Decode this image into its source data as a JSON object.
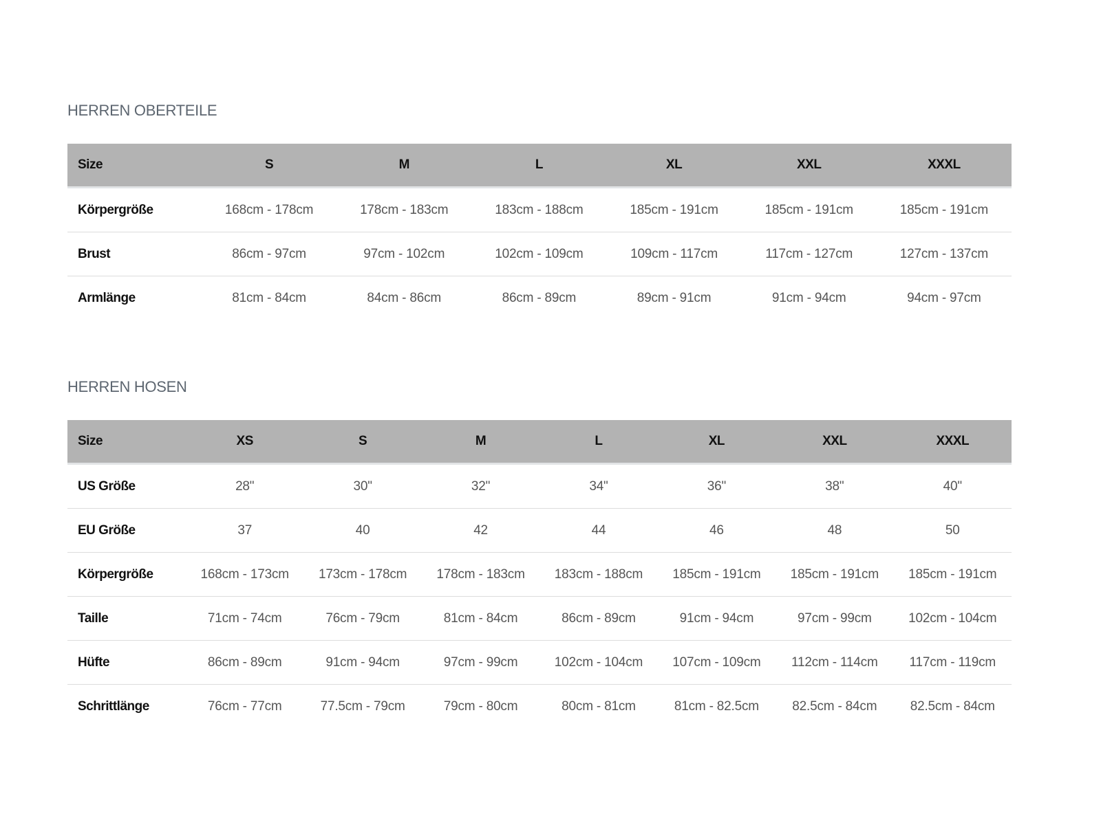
{
  "tops": {
    "title": "HERREN OBERTEILE",
    "headers": [
      "Size",
      "S",
      "M",
      "L",
      "XL",
      "XXL",
      "XXXL"
    ],
    "rows": [
      {
        "label": "Körpergröße",
        "values": [
          "168cm - 178cm",
          "178cm - 183cm",
          "183cm - 188cm",
          "185cm - 191cm",
          "185cm - 191cm",
          "185cm - 191cm"
        ]
      },
      {
        "label": "Brust",
        "values": [
          "86cm - 97cm",
          "97cm - 102cm",
          "102cm - 109cm",
          "109cm - 117cm",
          "117cm - 127cm",
          "127cm - 137cm"
        ]
      },
      {
        "label": "Armlänge",
        "values": [
          "81cm - 84cm",
          "84cm - 86cm",
          "86cm - 89cm",
          "89cm - 91cm",
          "91cm - 94cm",
          "94cm - 97cm"
        ]
      }
    ]
  },
  "pants": {
    "title": "HERREN HOSEN",
    "headers": [
      "Size",
      "XS",
      "S",
      "M",
      "L",
      "XL",
      "XXL",
      "XXXL"
    ],
    "rows": [
      {
        "label": "US Größe",
        "values": [
          "28\"",
          "30\"",
          "32\"",
          "34\"",
          "36\"",
          "38\"",
          "40\""
        ]
      },
      {
        "label": "EU Größe",
        "values": [
          "37",
          "40",
          "42",
          "44",
          "46",
          "48",
          "50"
        ]
      },
      {
        "label": "Körpergröße",
        "values": [
          "168cm - 173cm",
          "173cm - 178cm",
          "178cm - 183cm",
          "183cm - 188cm",
          "185cm - 191cm",
          "185cm - 191cm",
          "185cm - 191cm"
        ]
      },
      {
        "label": "Taille",
        "values": [
          "71cm - 74cm",
          "76cm - 79cm",
          "81cm - 84cm",
          "86cm - 89cm",
          "91cm - 94cm",
          "97cm - 99cm",
          "102cm - 104cm"
        ]
      },
      {
        "label": "Hüfte",
        "values": [
          "86cm - 89cm",
          "91cm - 94cm",
          "97cm - 99cm",
          "102cm - 104cm",
          "107cm - 109cm",
          "112cm - 114cm",
          "117cm - 119cm"
        ]
      },
      {
        "label": "Schrittlänge",
        "values": [
          "76cm - 77cm",
          "77.5cm - 79cm",
          "79cm - 80cm",
          "80cm - 81cm",
          "81cm - 82.5cm",
          "82.5cm - 84cm",
          "82.5cm - 84cm"
        ]
      }
    ]
  }
}
